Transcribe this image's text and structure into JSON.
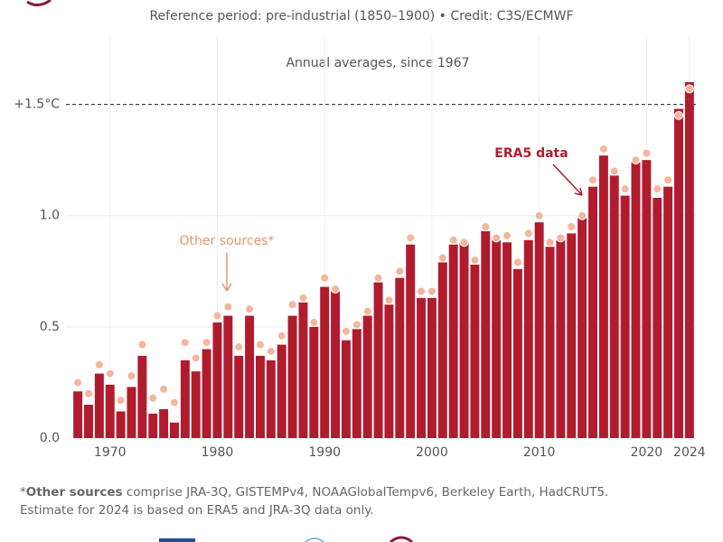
{
  "chart_data": {
    "type": "bar",
    "subtitle": "Reference period: pre-industrial (1850–1900) • Credit: C3S/ECMWF",
    "inner_title": "Annual averages, since 1967",
    "x": [
      1967,
      1968,
      1969,
      1970,
      1971,
      1972,
      1973,
      1974,
      1975,
      1976,
      1977,
      1978,
      1979,
      1980,
      1981,
      1982,
      1983,
      1984,
      1985,
      1986,
      1987,
      1988,
      1989,
      1990,
      1991,
      1992,
      1993,
      1994,
      1995,
      1996,
      1997,
      1998,
      1999,
      2000,
      2001,
      2002,
      2003,
      2004,
      2005,
      2006,
      2007,
      2008,
      2009,
      2010,
      2011,
      2012,
      2013,
      2014,
      2015,
      2016,
      2017,
      2018,
      2019,
      2020,
      2021,
      2022,
      2023,
      2024
    ],
    "series": [
      {
        "name": "ERA5 data",
        "color": "#b01c2e",
        "values": [
          0.21,
          0.15,
          0.29,
          0.24,
          0.12,
          0.23,
          0.37,
          0.11,
          0.13,
          0.07,
          0.35,
          0.3,
          0.4,
          0.52,
          0.55,
          0.37,
          0.55,
          0.37,
          0.35,
          0.42,
          0.55,
          0.61,
          0.5,
          0.68,
          0.66,
          0.44,
          0.49,
          0.55,
          0.7,
          0.6,
          0.72,
          0.87,
          0.63,
          0.63,
          0.79,
          0.87,
          0.88,
          0.78,
          0.93,
          0.89,
          0.88,
          0.76,
          0.89,
          0.97,
          0.86,
          0.89,
          0.92,
          0.99,
          1.13,
          1.27,
          1.18,
          1.09,
          1.24,
          1.25,
          1.08,
          1.13,
          1.48,
          1.6
        ]
      },
      {
        "name": "Other sources*",
        "color": "#f4b69c",
        "values": [
          0.25,
          0.2,
          0.33,
          0.29,
          0.17,
          0.28,
          0.42,
          0.18,
          0.22,
          0.16,
          0.43,
          0.36,
          0.43,
          0.55,
          0.59,
          0.41,
          0.58,
          0.42,
          0.39,
          0.46,
          0.6,
          0.63,
          0.52,
          0.72,
          0.67,
          0.48,
          0.51,
          0.57,
          0.72,
          0.62,
          0.75,
          0.9,
          0.66,
          0.66,
          0.81,
          0.89,
          0.88,
          0.8,
          0.95,
          0.9,
          0.91,
          0.79,
          0.92,
          1.0,
          0.88,
          0.9,
          0.95,
          1.0,
          1.16,
          1.3,
          1.2,
          1.12,
          1.25,
          1.28,
          1.12,
          1.16,
          1.45,
          1.57
        ]
      }
    ],
    "xlim": [
      1966.4,
      2024.6
    ],
    "xticks": [
      1970,
      1980,
      1990,
      2000,
      2010,
      2020,
      2024
    ],
    "ylim": [
      0,
      1.75
    ],
    "yticks": [
      {
        "value": 0,
        "label": "0.0"
      },
      0.5,
      {
        "value": 1,
        "label": "1.0"
      },
      {
        "value": 1.5,
        "label": "+1.5°C"
      }
    ],
    "grid": true,
    "footnote": {
      "star": "*",
      "bold": "Other sources",
      "rest": " comprise JRA-3Q, GISTEMPv4, NOAAGlobalTempv6, Berkeley Earth, HadCRUT5.",
      "line2": "Estimate for 2024 is based on ERA5 and JRA-3Q data only."
    }
  }
}
